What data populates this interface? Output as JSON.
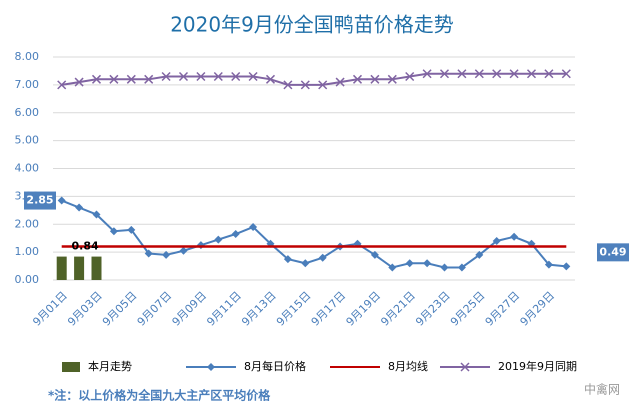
{
  "chart_data": {
    "type": "line",
    "title": "2020年9月份全国鸭苗价格走势",
    "categories": [
      "9月01日",
      null,
      "9月03日",
      null,
      "9月05日",
      null,
      "9月07日",
      null,
      "9月09日",
      null,
      "9月11日",
      null,
      "9月13日",
      null,
      "9月15日",
      null,
      "9月17日",
      null,
      "9月19日",
      null,
      "9月21日",
      null,
      "9月23日",
      null,
      "9月25日",
      null,
      "9月27日",
      null,
      "9月29日",
      null
    ],
    "series": [
      {
        "name": "本月走势",
        "type": "bar",
        "color": "#4f6228",
        "values": [
          0.84,
          0.84,
          0.84,
          null,
          null,
          null,
          null,
          null,
          null,
          null,
          null,
          null,
          null,
          null,
          null,
          null,
          null,
          null,
          null,
          null,
          null,
          null,
          null,
          null,
          null,
          null,
          null,
          null,
          null,
          null
        ]
      },
      {
        "name": "8月每日价格",
        "type": "line",
        "marker": "diamond",
        "color": "#4a7ebb",
        "values": [
          2.85,
          2.6,
          2.35,
          1.75,
          1.8,
          0.95,
          0.9,
          1.05,
          1.25,
          1.45,
          1.65,
          1.9,
          1.3,
          0.75,
          0.6,
          0.8,
          1.2,
          1.3,
          0.9,
          0.45,
          0.6,
          0.6,
          0.45,
          0.45,
          0.9,
          1.4,
          1.55,
          1.3,
          0.55,
          0.49
        ]
      },
      {
        "name": "8月均线",
        "type": "line",
        "marker": "none",
        "color": "#c00000",
        "values": [
          1.2,
          1.2,
          1.2,
          1.2,
          1.2,
          1.2,
          1.2,
          1.2,
          1.2,
          1.2,
          1.2,
          1.2,
          1.2,
          1.2,
          1.2,
          1.2,
          1.2,
          1.2,
          1.2,
          1.2,
          1.2,
          1.2,
          1.2,
          1.2,
          1.2,
          1.2,
          1.2,
          1.2,
          1.2,
          1.2
        ]
      },
      {
        "name": "2019年9月同期",
        "type": "line",
        "marker": "x",
        "color": "#8064a2",
        "values": [
          7.0,
          7.1,
          7.2,
          7.2,
          7.2,
          7.2,
          7.3,
          7.3,
          7.3,
          7.3,
          7.3,
          7.3,
          7.2,
          7.0,
          7.0,
          7.0,
          7.1,
          7.2,
          7.2,
          7.2,
          7.3,
          7.4,
          7.4,
          7.4,
          7.4,
          7.4,
          7.4,
          7.4,
          7.4,
          7.4
        ]
      }
    ],
    "ylim": [
      0,
      8
    ],
    "yticks": [
      {
        "value": 0,
        "label": "0.00"
      },
      {
        "value": 1,
        "label": "1.00"
      },
      {
        "value": 2,
        "label": "2.00"
      },
      {
        "value": 3,
        "label": "3.00"
      },
      {
        "value": 4,
        "label": "4.00"
      },
      {
        "value": 5,
        "label": "5.00"
      },
      {
        "value": 6,
        "label": "6.00"
      },
      {
        "value": 7,
        "label": "7.00"
      },
      {
        "value": 8,
        "label": "8.00"
      }
    ],
    "grid": true,
    "legend": "bottom",
    "footnote": "*注：以上价格为全国九大主产区平均价格",
    "watermark": "中禽网"
  }
}
